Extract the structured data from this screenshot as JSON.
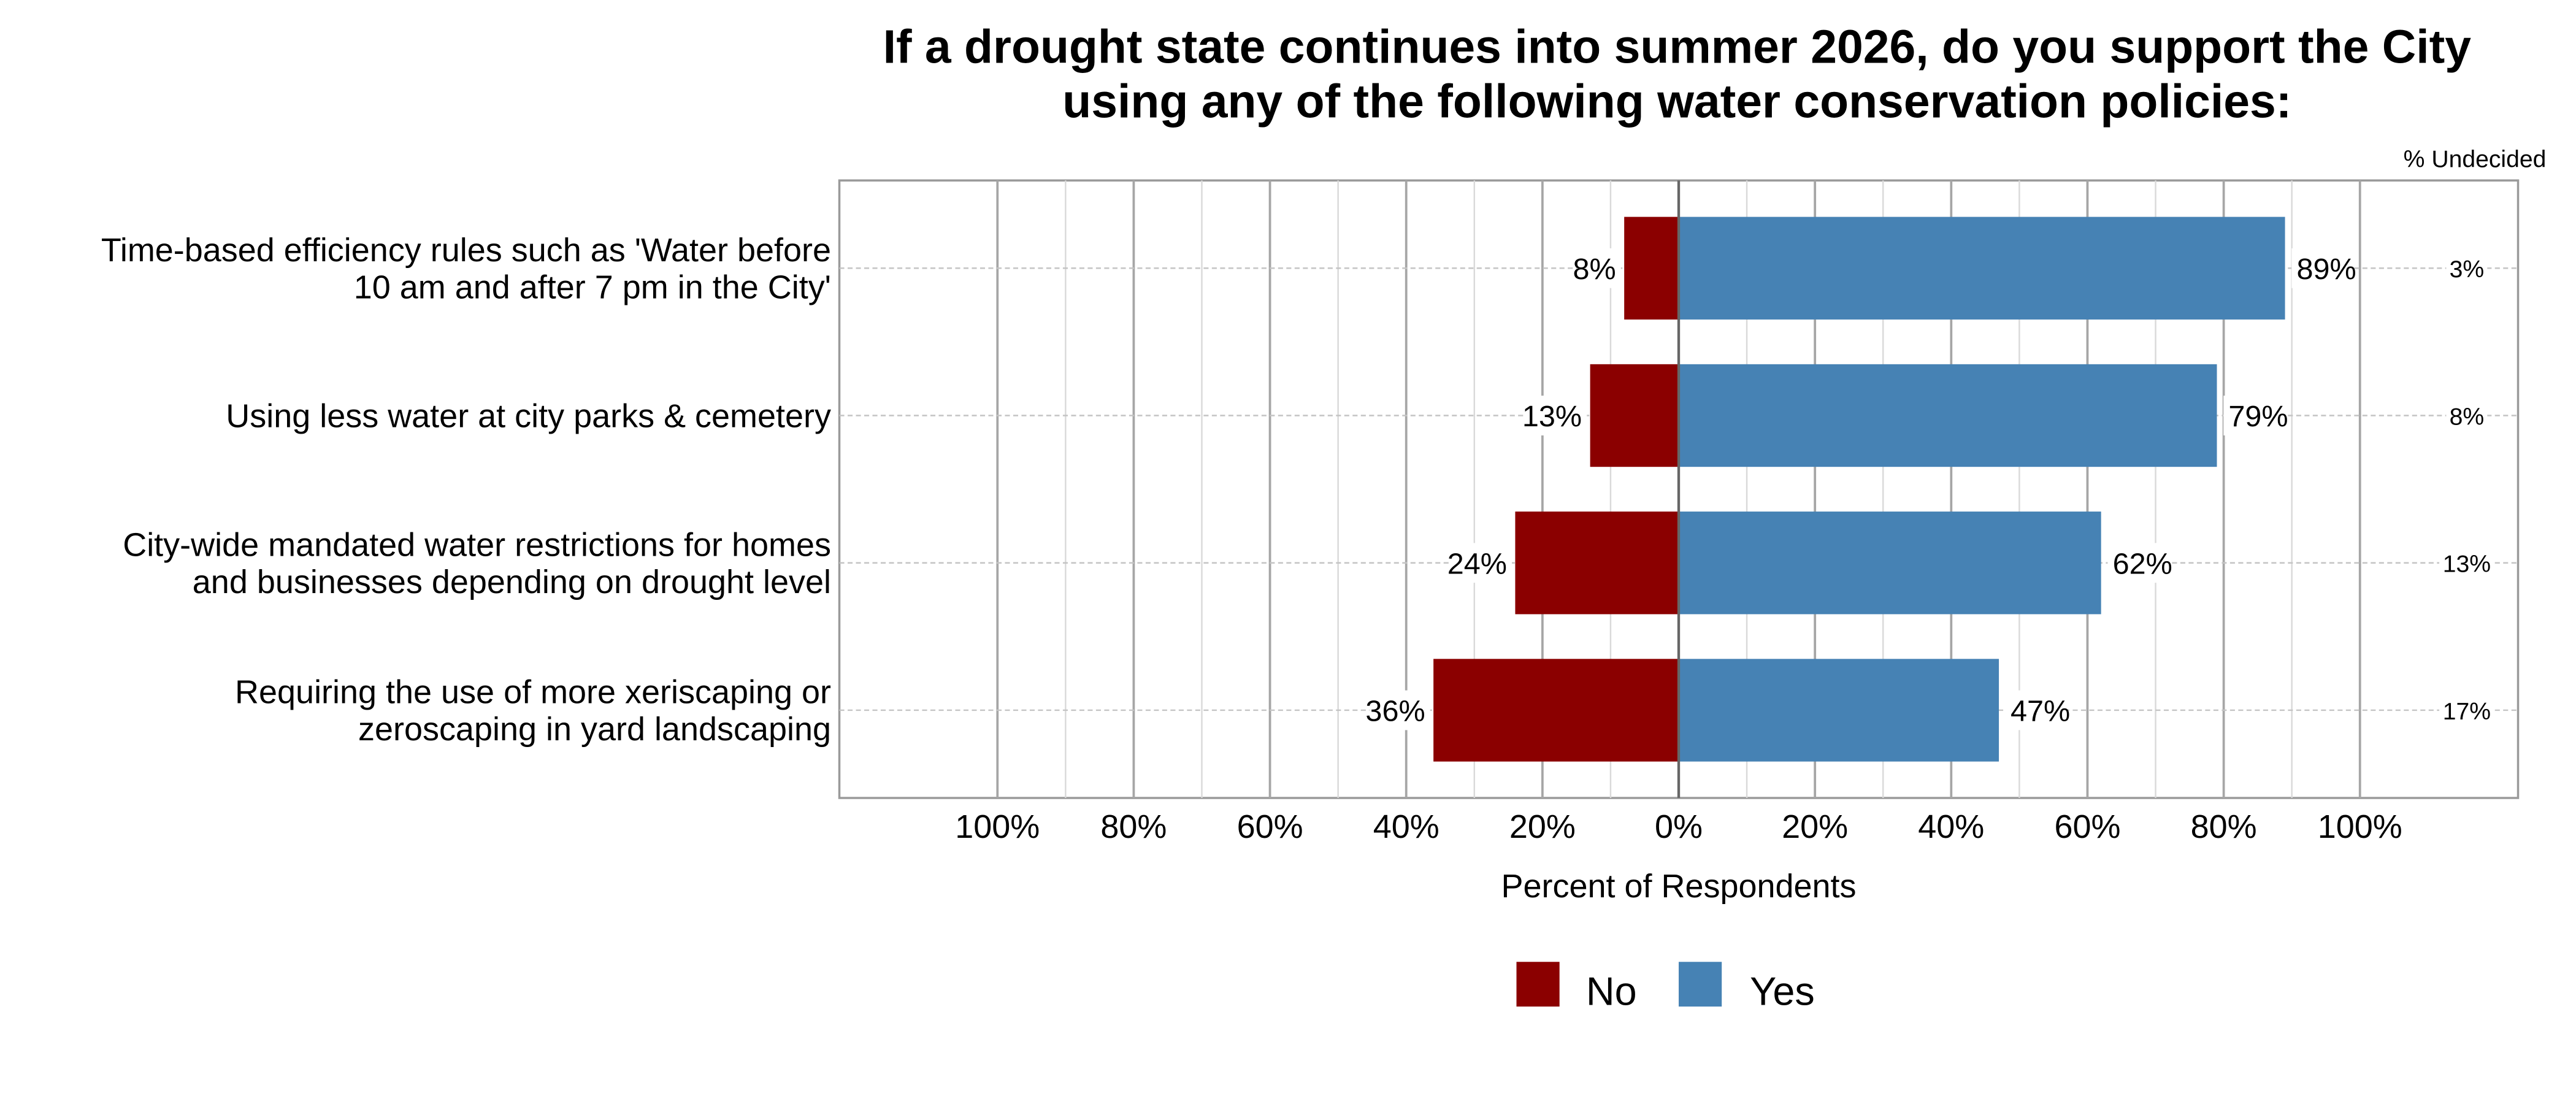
{
  "chart_data": {
    "type": "bar",
    "orientation": "horizontal-diverging",
    "title": [
      "If a drought state continues into summer 2026, do you support the City",
      "using any of the following water conservation policies:"
    ],
    "undecided_header": "% Undecided",
    "xlabel": "Percent of Respondents",
    "ylabel": "",
    "xlim": [
      -100,
      100
    ],
    "x_ticks": [
      -100,
      -80,
      -60,
      -40,
      -20,
      0,
      20,
      40,
      60,
      80,
      100
    ],
    "x_tick_labels": [
      "100%",
      "80%",
      "60%",
      "40%",
      "20%",
      "0%",
      "20%",
      "40%",
      "60%",
      "80%",
      "100%"
    ],
    "grid": true,
    "legend_position": "bottom",
    "categories": [
      [
        "Time-based efficiency rules such as 'Water before",
        "10 am and after 7 pm in the City'"
      ],
      [
        "Using less water at city parks & cemetery"
      ],
      [
        "City-wide mandated water restrictions for homes",
        "and businesses depending on drought level"
      ],
      [
        "Requiring the use of more xeriscaping or",
        "zeroscaping in yard landscaping"
      ]
    ],
    "series": [
      {
        "name": "No",
        "color": "#8B0000",
        "values": [
          8,
          13,
          24,
          36
        ],
        "labels": [
          "8%",
          "13%",
          "24%",
          "36%"
        ]
      },
      {
        "name": "Yes",
        "color": "#4682B4",
        "values": [
          89,
          79,
          62,
          47
        ],
        "labels": [
          "89%",
          "79%",
          "62%",
          "47%"
        ]
      }
    ],
    "undecided": {
      "values": [
        3,
        8,
        13,
        17
      ],
      "labels": [
        "3%",
        "8%",
        "13%",
        "17%"
      ]
    }
  }
}
